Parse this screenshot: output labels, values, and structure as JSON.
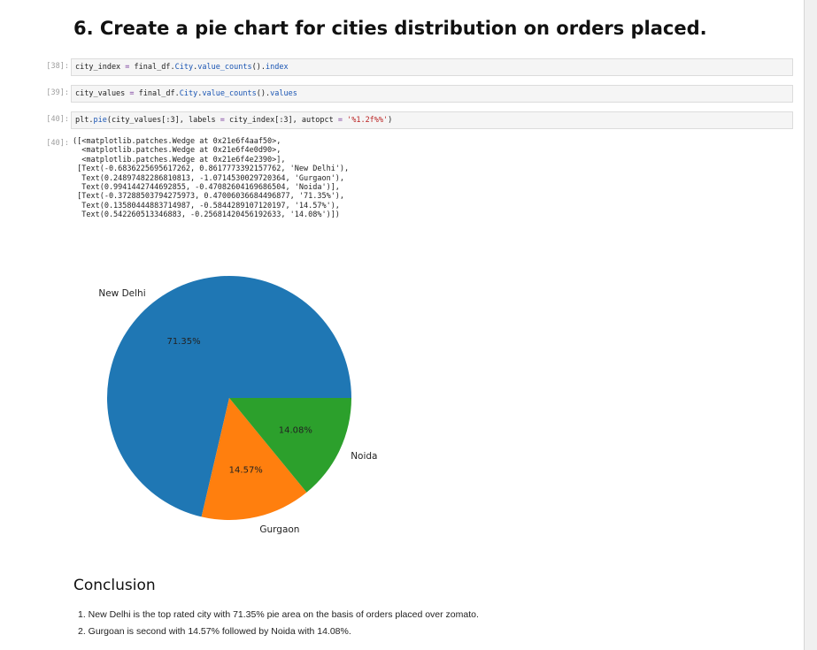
{
  "heading": "6. Create a pie chart for cities distribution on orders placed.",
  "cells": [
    {
      "prompt": "[38]:",
      "code": "city_index = final_df.City.value_counts().index"
    },
    {
      "prompt": "[39]:",
      "code": "city_values = final_df.City.value_counts().values"
    },
    {
      "prompt": "[40]:",
      "code": "plt.pie(city_values[:3], labels = city_index[:3], autopct = '%1.2f%%')"
    }
  ],
  "output": {
    "prompt": "[40]:",
    "lines": [
      "([<matplotlib.patches.Wedge at 0x21e6f4aaf50>,",
      "  <matplotlib.patches.Wedge at 0x21e6f4e0d90>,",
      "  <matplotlib.patches.Wedge at 0x21e6f4e2390>],",
      " [Text(-0.6836225695617262, 0.8617773392157762, 'New Delhi'),",
      "  Text(0.2489748228681081З, -1.0714530029720364, 'Gurgaon'),",
      "  Text(0.9941442744692855, -0.47082604169686504, 'Noida')],",
      " [Text(-0.37288503794275973, 0.47006036684496877, '71.35%'),",
      "  Text(0.13580444883714987, -0.5844289107120197, '14.57%'),",
      "  Text(0.542260513346883, -0.25681420456192633, '14.08%')])"
    ]
  },
  "chart_data": {
    "type": "pie",
    "labels": [
      "New Delhi",
      "Gurgaon",
      "Noida"
    ],
    "values": [
      71.35,
      14.57,
      14.08
    ],
    "value_labels": [
      "71.35%",
      "14.57%",
      "14.08%"
    ],
    "colors": [
      "#1f77b4",
      "#ff7f0e",
      "#2ca02c"
    ],
    "start_angle": 0,
    "direction": "counterclockwise"
  },
  "conclusion": {
    "title": "Conclusion",
    "items": [
      "1. New Delhi is the top rated city with 71.35% pie area on the basis of orders placed over zomato.",
      "2. Gurgoan is second with 14.57% followed by Noida with 14.08%."
    ]
  }
}
